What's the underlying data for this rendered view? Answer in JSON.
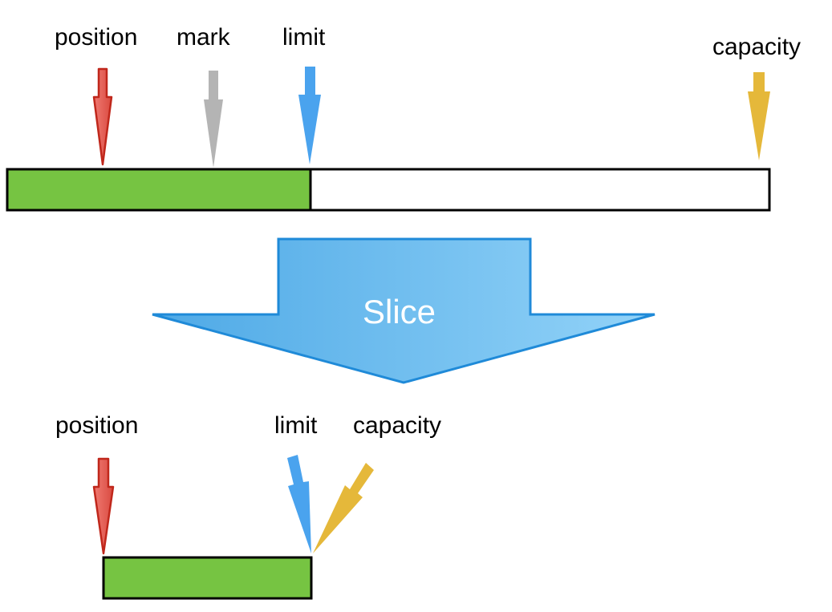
{
  "top": {
    "labels": {
      "position": "position",
      "mark": "mark",
      "limit": "limit",
      "capacity": "capacity"
    }
  },
  "transform": {
    "label": "Slice"
  },
  "bottom": {
    "labels": {
      "position": "position",
      "limit": "limit",
      "capacity": "capacity"
    }
  },
  "colors": {
    "position": "#e8605a",
    "position_stroke": "#c0271b",
    "mark": "#b4b4b4",
    "limit": "#4aa3ee",
    "capacity": "#e5b83a",
    "filled": "#76c442",
    "slice_light": "#8ecff5",
    "slice_dark": "#5baee6",
    "slice_stroke": "#1f8ad8"
  }
}
